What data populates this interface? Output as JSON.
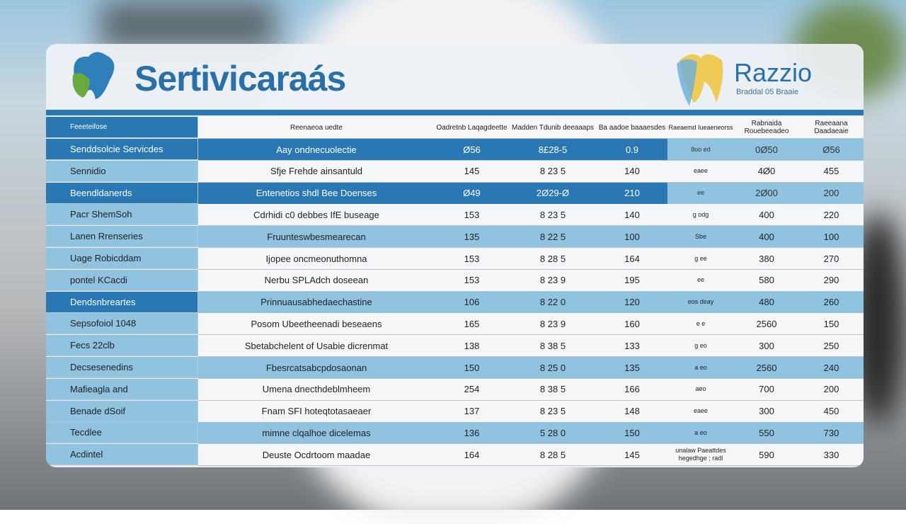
{
  "header": {
    "brand_left": "Sertivicaraás",
    "brand_right": "Razzio",
    "brand_right_sub": "Braddal 05 Braaie"
  },
  "table": {
    "columns": [
      "Feeeteifose",
      "Reenaeoa uedte",
      "Oadretnb Laqagdeette",
      "Madden Tdunib deeaaaps",
      "Ba aadoe baaaesdes",
      "Raeaemd Iueaeneorss",
      "Rabnaida Rouebeeadeo",
      "Raeeaana Daadaeaie"
    ],
    "rows": [
      [
        "Senddsolcie Servicdes",
        "Aay ondnecuolectie",
        "Ø56",
        "8£28-5",
        "0.9",
        "8oo ed",
        "0Ø50",
        "Ø56"
      ],
      [
        "Sennidio",
        "Sfje Frehde ainsantuld",
        "145",
        "8 23 5",
        "140",
        "eaee",
        "4Ø0",
        "455"
      ],
      [
        "Beendldanerds",
        "Entenetios shdl Bee Doenses",
        "Ø49",
        "2Ø29-Ø",
        "210",
        "ee",
        "2Ø00",
        "200"
      ],
      [
        "Pacr ShemSoh",
        "Cdrhidi c0 debbes IfE buseage",
        "153",
        "8 23 5",
        "140",
        "g odg",
        "400",
        "220"
      ],
      [
        "Lanen Rrenseries",
        "Fruunteswbesmearecan",
        "135",
        "8 22 5",
        "100",
        "Sbe",
        "400",
        "100"
      ],
      [
        "Uage Robicddam",
        "Ijopee oncmeonuthomna",
        "153",
        "8 28 5",
        "164",
        "g ee",
        "380",
        "270"
      ],
      [
        "pontel KCacdi",
        "Nerbu SPLAdch doseean",
        "153",
        "8 23 9",
        "195",
        "ee",
        "580",
        "290"
      ],
      [
        "Dendsnbreartes",
        "Prinnuausabhedaechastine",
        "106",
        "8 22 0",
        "120",
        "eos deay",
        "480",
        "260"
      ],
      [
        "Sepsofoiol 1048",
        "Posom Ubeetheenadi beseaens",
        "165",
        "8 23 9",
        "160",
        "e e",
        "2560",
        "150"
      ],
      [
        "Fecs 22clb",
        "Sbetabchelent of Usabie dicrenmat",
        "138",
        "8 38 5",
        "133",
        "g eo",
        "300",
        "250"
      ],
      [
        "Decsesenedins",
        "Fbesrcatsabcpdosaonan",
        "150",
        "8 25 0",
        "135",
        "a eo",
        "2560",
        "240"
      ],
      [
        "Mafieagla and",
        "Umena dnecthdeblmheem",
        "254",
        "8 38 5",
        "166",
        "aeo",
        "700",
        "200"
      ],
      [
        "Benade dSoif",
        "Fnam SFI hoteqtotasaeaer",
        "137",
        "8 23 5",
        "148",
        "eaee",
        "300",
        "450"
      ],
      [
        "Tecdlee",
        "mimne clqalhoe dicelemas",
        "136",
        "5 28 0",
        "150",
        "a eo",
        "550",
        "730"
      ],
      [
        "Acdintel",
        "Deuste Ocdrtoom maadae",
        "164",
        "8 28 5",
        "145",
        "unalaw Paeattdes hegedhge ; radl",
        "590",
        "330"
      ]
    ]
  }
}
